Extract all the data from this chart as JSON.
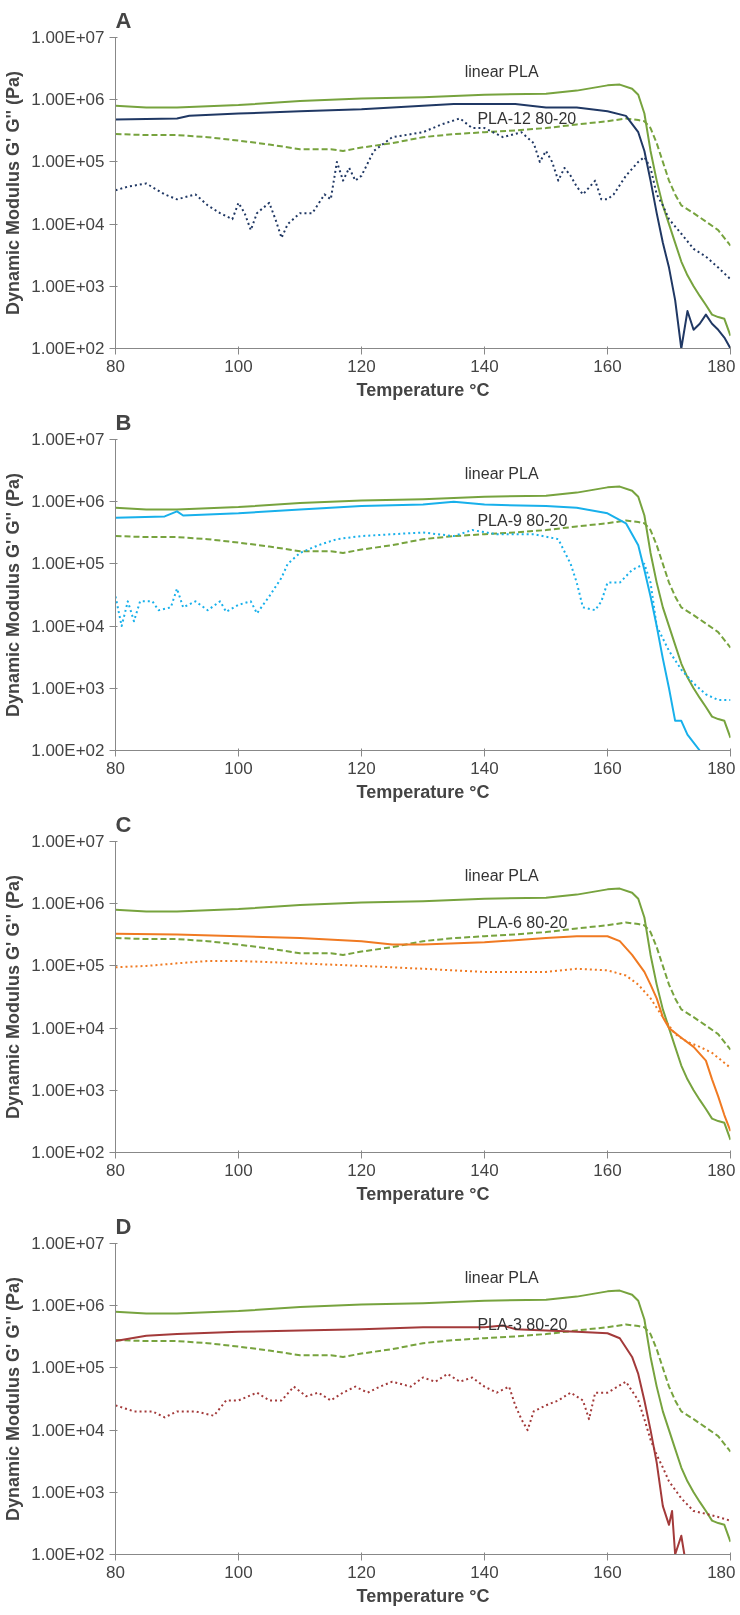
{
  "chart_data": [
    {
      "type": "line",
      "title": "A",
      "xlabel": "Temperature °C",
      "ylabel": "Dynamic Modulus G' G'' (Pa)",
      "log": "y",
      "grid": false,
      "xlim": [
        80,
        180
      ],
      "xticks": [
        80,
        100,
        120,
        140,
        160,
        180
      ],
      "ylim": [
        100,
        10000000
      ],
      "yticks": [
        {
          "value": 100,
          "label": "1.00E+02"
        },
        {
          "value": 1000,
          "label": "1.00E+03"
        },
        {
          "value": 10000,
          "label": "1.00E+04"
        },
        {
          "value": 100000,
          "label": "1.00E+05"
        },
        {
          "value": 1000000,
          "label": "1.00E+06"
        },
        {
          "value": 10000000,
          "label": "1.00E+07"
        }
      ],
      "annotations": [
        "linear PLA",
        "PLA-12 80-20"
      ],
      "series": [
        {
          "color": "#77a33e",
          "line_style": "solid",
          "x": [
            80,
            85,
            90,
            100,
            110,
            120,
            130,
            140,
            150,
            155,
            160,
            162,
            164,
            165,
            166,
            167,
            168,
            169,
            170,
            171,
            172,
            173,
            174,
            175,
            176,
            177,
            178,
            179,
            180
          ],
          "values": [
            800000,
            750000,
            750000,
            820000,
            950000,
            1050000,
            1100000,
            1200000,
            1250000,
            1400000,
            1700000,
            1750000,
            1500000,
            1200000,
            600000,
            150000,
            50000,
            20000,
            10000,
            5000,
            2500,
            1500,
            1000,
            700,
            500,
            350,
            320,
            300,
            160
          ]
        },
        {
          "color": "#77a33e",
          "line_style": "dashed",
          "x": [
            80,
            85,
            90,
            95,
            100,
            105,
            110,
            115,
            117,
            120,
            125,
            130,
            135,
            140,
            145,
            150,
            155,
            160,
            163,
            165,
            166,
            167,
            168,
            169,
            170,
            171,
            172,
            174,
            176,
            178,
            180
          ],
          "values": [
            280000,
            270000,
            270000,
            250000,
            220000,
            190000,
            160000,
            160000,
            150000,
            170000,
            200000,
            250000,
            280000,
            300000,
            320000,
            350000,
            400000,
            450000,
            500000,
            470000,
            450000,
            350000,
            200000,
            100000,
            50000,
            30000,
            20000,
            15000,
            11000,
            8000,
            4500
          ]
        },
        {
          "color": "#203864",
          "line_style": "solid",
          "x": [
            80,
            90,
            92,
            100,
            110,
            120,
            130,
            135,
            140,
            145,
            150,
            155,
            160,
            163,
            165,
            166,
            167,
            168,
            169,
            170,
            171,
            172,
            173,
            174,
            175,
            176,
            177,
            178,
            179,
            180
          ],
          "values": [
            480000,
            500000,
            550000,
            600000,
            650000,
            700000,
            800000,
            850000,
            850000,
            850000,
            750000,
            750000,
            650000,
            550000,
            300000,
            150000,
            50000,
            15000,
            5000,
            2000,
            600,
            100,
            400,
            200,
            250,
            350,
            250,
            200,
            150,
            100
          ]
        },
        {
          "color": "#203864",
          "line_style": "dotted",
          "x": [
            80,
            82,
            85,
            88,
            90,
            93,
            95,
            97,
            99,
            100,
            101,
            102,
            103,
            105,
            106,
            107,
            108,
            110,
            112,
            114,
            115,
            116,
            117,
            118,
            119,
            120,
            122,
            125,
            130,
            133,
            136,
            138,
            140,
            143,
            146,
            148,
            149,
            150,
            151,
            152,
            153,
            154,
            155,
            156,
            158,
            159,
            160,
            161,
            163,
            165,
            166,
            167,
            168,
            169,
            170,
            172,
            174,
            176,
            178,
            180
          ],
          "values": [
            35000,
            40000,
            45000,
            30000,
            25000,
            30000,
            20000,
            15000,
            12000,
            22000,
            15000,
            8000,
            15000,
            22000,
            12000,
            6000,
            10000,
            15000,
            15000,
            30000,
            25000,
            100000,
            50000,
            80000,
            50000,
            60000,
            150000,
            250000,
            300000,
            400000,
            500000,
            350000,
            350000,
            250000,
            300000,
            200000,
            100000,
            150000,
            100000,
            50000,
            80000,
            60000,
            40000,
            30000,
            50000,
            25000,
            25000,
            30000,
            60000,
            100000,
            120000,
            80000,
            30000,
            20000,
            12000,
            7000,
            4000,
            3000,
            2000,
            1300
          ]
        }
      ]
    },
    {
      "type": "line",
      "title": "B",
      "xlabel": "Temperature °C",
      "ylabel": "Dynamic Modulus G' G'' (Pa)",
      "log": "y",
      "grid": false,
      "xlim": [
        80,
        180
      ],
      "xticks": [
        80,
        100,
        120,
        140,
        160,
        180
      ],
      "ylim": [
        100,
        10000000
      ],
      "yticks": [
        {
          "value": 100,
          "label": "1.00E+02"
        },
        {
          "value": 1000,
          "label": "1.00E+03"
        },
        {
          "value": 10000,
          "label": "1.00E+04"
        },
        {
          "value": 100000,
          "label": "1.00E+05"
        },
        {
          "value": 1000000,
          "label": "1.00E+06"
        },
        {
          "value": 10000000,
          "label": "1.00E+07"
        }
      ],
      "annotations": [
        "linear PLA",
        "PLA-9 80-20"
      ],
      "series": [
        {
          "color": "#77a33e",
          "line_style": "solid",
          "x": [
            80,
            85,
            90,
            100,
            110,
            120,
            130,
            140,
            150,
            155,
            160,
            162,
            164,
            165,
            166,
            167,
            168,
            169,
            170,
            171,
            172,
            173,
            174,
            175,
            176,
            177,
            178,
            179,
            180
          ],
          "values": [
            800000,
            750000,
            750000,
            820000,
            950000,
            1050000,
            1100000,
            1200000,
            1250000,
            1400000,
            1700000,
            1750000,
            1500000,
            1200000,
            600000,
            150000,
            50000,
            20000,
            10000,
            5000,
            2500,
            1500,
            1000,
            700,
            500,
            350,
            320,
            300,
            160
          ]
        },
        {
          "color": "#77a33e",
          "line_style": "dashed",
          "x": [
            80,
            85,
            90,
            95,
            100,
            105,
            110,
            115,
            117,
            120,
            125,
            130,
            135,
            140,
            145,
            150,
            155,
            160,
            163,
            165,
            166,
            167,
            168,
            169,
            170,
            171,
            172,
            174,
            176,
            178,
            180
          ],
          "values": [
            280000,
            270000,
            270000,
            250000,
            220000,
            190000,
            160000,
            160000,
            150000,
            170000,
            200000,
            250000,
            280000,
            300000,
            320000,
            350000,
            400000,
            450000,
            500000,
            470000,
            450000,
            350000,
            200000,
            100000,
            50000,
            30000,
            20000,
            15000,
            11000,
            8000,
            4500
          ]
        },
        {
          "color": "#18b0eb",
          "line_style": "solid",
          "x": [
            80,
            88,
            90,
            91,
            100,
            110,
            120,
            130,
            135,
            140,
            150,
            155,
            160,
            163,
            165,
            166,
            167,
            168,
            169,
            170,
            171,
            172,
            173,
            175
          ],
          "values": [
            550000,
            580000,
            700000,
            600000,
            650000,
            750000,
            850000,
            900000,
            1000000,
            900000,
            850000,
            800000,
            650000,
            450000,
            200000,
            80000,
            30000,
            10000,
            3000,
            1000,
            300,
            300,
            180,
            100
          ]
        },
        {
          "color": "#18b0eb",
          "line_style": "dotted",
          "x": [
            80,
            81,
            82,
            83,
            84,
            86,
            87,
            89,
            90,
            91,
            93,
            95,
            97,
            98,
            100,
            102,
            103,
            105,
            107,
            108,
            110,
            113,
            116,
            120,
            125,
            130,
            135,
            138,
            142,
            148,
            152,
            154,
            155,
            156,
            158,
            159,
            160,
            162,
            164,
            166,
            167,
            168,
            170,
            172,
            174,
            176,
            178,
            180
          ],
          "values": [
            30000,
            10000,
            25000,
            12000,
            25000,
            25000,
            18000,
            20000,
            40000,
            20000,
            25000,
            18000,
            25000,
            17000,
            22000,
            25000,
            16000,
            30000,
            60000,
            100000,
            150000,
            200000,
            250000,
            280000,
            300000,
            320000,
            280000,
            350000,
            300000,
            300000,
            250000,
            100000,
            50000,
            20000,
            18000,
            25000,
            50000,
            50000,
            80000,
            100000,
            50000,
            10000,
            4000,
            2000,
            1200,
            800,
            650,
            650
          ]
        }
      ]
    },
    {
      "type": "line",
      "title": "C",
      "xlabel": "Temperature °C",
      "ylabel": "Dynamic Modulus G' G'' (Pa)",
      "log": "y",
      "grid": false,
      "xlim": [
        80,
        180
      ],
      "xticks": [
        80,
        100,
        120,
        140,
        160,
        180
      ],
      "ylim": [
        100,
        10000000
      ],
      "yticks": [
        {
          "value": 100,
          "label": "1.00E+02"
        },
        {
          "value": 1000,
          "label": "1.00E+03"
        },
        {
          "value": 10000,
          "label": "1.00E+04"
        },
        {
          "value": 100000,
          "label": "1.00E+05"
        },
        {
          "value": 1000000,
          "label": "1.00E+06"
        },
        {
          "value": 10000000,
          "label": "1.00E+07"
        }
      ],
      "annotations": [
        "linear PLA",
        "PLA-6 80-20"
      ],
      "series": [
        {
          "color": "#77a33e",
          "line_style": "solid",
          "x": [
            80,
            85,
            90,
            100,
            110,
            120,
            130,
            140,
            150,
            155,
            160,
            162,
            164,
            165,
            166,
            167,
            168,
            169,
            170,
            171,
            172,
            173,
            174,
            175,
            176,
            177,
            178,
            179,
            180
          ],
          "values": [
            800000,
            750000,
            750000,
            820000,
            950000,
            1050000,
            1100000,
            1200000,
            1250000,
            1400000,
            1700000,
            1750000,
            1500000,
            1200000,
            600000,
            150000,
            50000,
            20000,
            10000,
            5000,
            2500,
            1500,
            1000,
            700,
            500,
            350,
            320,
            300,
            160
          ]
        },
        {
          "color": "#77a33e",
          "line_style": "dashed",
          "x": [
            80,
            85,
            90,
            95,
            100,
            105,
            110,
            115,
            117,
            120,
            125,
            130,
            135,
            140,
            145,
            150,
            155,
            160,
            163,
            165,
            166,
            167,
            168,
            169,
            170,
            171,
            172,
            174,
            176,
            178,
            180
          ],
          "values": [
            280000,
            270000,
            270000,
            250000,
            220000,
            190000,
            160000,
            160000,
            150000,
            170000,
            200000,
            250000,
            280000,
            300000,
            320000,
            350000,
            400000,
            450000,
            500000,
            470000,
            450000,
            350000,
            200000,
            100000,
            50000,
            30000,
            20000,
            15000,
            11000,
            8000,
            4500
          ]
        },
        {
          "color": "#f07a22",
          "line_style": "solid",
          "x": [
            80,
            90,
            100,
            110,
            120,
            125,
            130,
            140,
            150,
            155,
            160,
            162,
            164,
            166,
            167,
            168,
            169,
            170,
            172,
            174,
            176,
            177,
            178,
            179,
            180
          ],
          "values": [
            330000,
            320000,
            300000,
            280000,
            250000,
            220000,
            220000,
            240000,
            280000,
            300000,
            300000,
            250000,
            150000,
            80000,
            50000,
            30000,
            15000,
            10000,
            7000,
            5000,
            3000,
            1500,
            800,
            400,
            220
          ]
        },
        {
          "color": "#f07a22",
          "line_style": "dotted",
          "x": [
            80,
            85,
            90,
            95,
            100,
            105,
            110,
            120,
            130,
            140,
            150,
            155,
            160,
            163,
            165,
            167,
            169,
            171,
            173,
            175,
            177,
            180
          ],
          "values": [
            95000,
            100000,
            110000,
            120000,
            120000,
            115000,
            110000,
            100000,
            90000,
            80000,
            80000,
            90000,
            85000,
            70000,
            50000,
            30000,
            15000,
            8000,
            6000,
            5000,
            4000,
            2300
          ]
        }
      ]
    },
    {
      "type": "line",
      "title": "D",
      "xlabel": "Temperature °C",
      "ylabel": "Dynamic Modulus G' G'' (Pa)",
      "log": "y",
      "grid": false,
      "xlim": [
        80,
        180
      ],
      "xticks": [
        80,
        100,
        120,
        140,
        160,
        180
      ],
      "ylim": [
        100,
        10000000
      ],
      "yticks": [
        {
          "value": 100,
          "label": "1.00E+02"
        },
        {
          "value": 1000,
          "label": "1.00E+03"
        },
        {
          "value": 10000,
          "label": "1.00E+04"
        },
        {
          "value": 100000,
          "label": "1.00E+05"
        },
        {
          "value": 1000000,
          "label": "1.00E+06"
        },
        {
          "value": 10000000,
          "label": "1.00E+07"
        }
      ],
      "annotations": [
        "linear PLA",
        "PLA-3 80-20"
      ],
      "series": [
        {
          "color": "#77a33e",
          "line_style": "solid",
          "x": [
            80,
            85,
            90,
            100,
            110,
            120,
            130,
            140,
            150,
            155,
            160,
            162,
            164,
            165,
            166,
            167,
            168,
            169,
            170,
            171,
            172,
            173,
            174,
            175,
            176,
            177,
            178,
            179,
            180
          ],
          "values": [
            800000,
            750000,
            750000,
            820000,
            950000,
            1050000,
            1100000,
            1200000,
            1250000,
            1400000,
            1700000,
            1750000,
            1500000,
            1200000,
            600000,
            150000,
            50000,
            20000,
            10000,
            5000,
            2500,
            1500,
            1000,
            700,
            500,
            350,
            320,
            300,
            160
          ]
        },
        {
          "color": "#77a33e",
          "line_style": "dashed",
          "x": [
            80,
            85,
            90,
            95,
            100,
            105,
            110,
            115,
            117,
            120,
            125,
            130,
            135,
            140,
            145,
            150,
            155,
            160,
            163,
            165,
            166,
            167,
            168,
            169,
            170,
            171,
            172,
            174,
            176,
            178,
            180
          ],
          "values": [
            280000,
            270000,
            270000,
            250000,
            220000,
            190000,
            160000,
            160000,
            150000,
            170000,
            200000,
            250000,
            280000,
            300000,
            320000,
            350000,
            400000,
            450000,
            500000,
            470000,
            450000,
            350000,
            200000,
            100000,
            50000,
            30000,
            20000,
            15000,
            11000,
            8000,
            4500
          ]
        },
        {
          "color": "#a33a3a",
          "line_style": "solid",
          "x": [
            80,
            85,
            90,
            100,
            110,
            120,
            130,
            135,
            140,
            143,
            145,
            150,
            155,
            160,
            162,
            164,
            165,
            166,
            167,
            168,
            169,
            170,
            170.5,
            171,
            172,
            172.5
          ],
          "values": [
            270000,
            330000,
            350000,
            380000,
            400000,
            420000,
            450000,
            450000,
            450000,
            480000,
            420000,
            400000,
            380000,
            360000,
            300000,
            150000,
            80000,
            30000,
            10000,
            3000,
            600,
            300,
            500,
            100,
            200,
            100
          ]
        },
        {
          "color": "#a33a3a",
          "line_style": "dotted",
          "x": [
            80,
            83,
            86,
            88,
            90,
            93,
            96,
            98,
            100,
            103,
            105,
            107,
            109,
            111,
            113,
            115,
            117,
            119,
            121,
            123,
            125,
            128,
            130,
            132,
            134,
            136,
            138,
            140,
            142,
            144,
            145,
            146,
            147,
            148,
            150,
            152,
            154,
            156,
            157,
            158,
            160,
            163,
            165,
            166,
            167,
            168,
            169,
            170,
            172,
            174,
            176,
            178,
            180
          ],
          "values": [
            25000,
            20000,
            20000,
            16000,
            20000,
            20000,
            17000,
            30000,
            30000,
            40000,
            30000,
            30000,
            50000,
            35000,
            40000,
            30000,
            40000,
            50000,
            40000,
            50000,
            60000,
            50000,
            70000,
            60000,
            80000,
            60000,
            70000,
            50000,
            40000,
            50000,
            25000,
            15000,
            10000,
            20000,
            25000,
            30000,
            40000,
            30000,
            15000,
            40000,
            40000,
            60000,
            30000,
            15000,
            7000,
            4000,
            2500,
            1500,
            800,
            500,
            450,
            400,
            350
          ]
        }
      ]
    }
  ]
}
